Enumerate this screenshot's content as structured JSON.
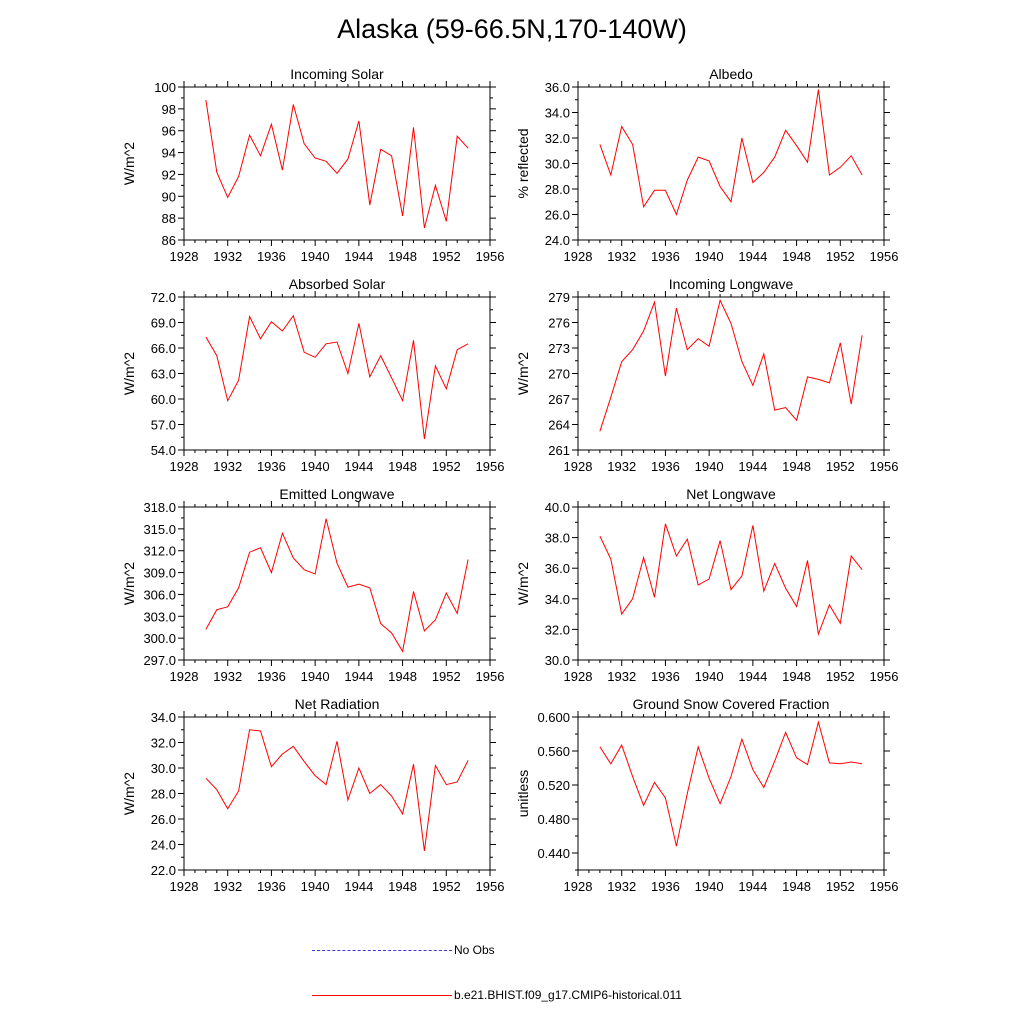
{
  "title": "Alaska (59-66.5N,170-140W)",
  "legend": [
    {
      "label": "No Obs",
      "style": "dashed",
      "color": "#3a3acc"
    },
    {
      "label": "b.e21.BHIST.f09_g17.CMIP6-historical.011",
      "style": "solid",
      "color": "#ff0000"
    }
  ],
  "series_color": "#ff0000",
  "chart_data": [
    {
      "type": "line",
      "title": "Incoming Solar",
      "ylabel": "W/m^2",
      "xlim": [
        1928,
        1956
      ],
      "xticks": [
        "1928",
        "1932",
        "1936",
        "1940",
        "1944",
        "1948",
        "1952",
        "1956"
      ],
      "ylim": [
        86,
        100
      ],
      "yticks": [
        "86",
        "88",
        "90",
        "92",
        "94",
        "96",
        "98",
        "100"
      ],
      "x": [
        1930,
        1931,
        1932,
        1933,
        1934,
        1935,
        1936,
        1937,
        1938,
        1939,
        1940,
        1941,
        1942,
        1943,
        1944,
        1945,
        1946,
        1947,
        1948,
        1949,
        1950,
        1951,
        1952,
        1953,
        1954
      ],
      "series": [
        {
          "values": [
            98.8,
            92.2,
            89.9,
            91.8,
            95.6,
            93.7,
            96.6,
            92.4,
            98.4,
            94.8,
            93.5,
            93.2,
            92.1,
            93.4,
            96.9,
            89.2,
            94.3,
            93.7,
            88.2,
            96.3,
            87.1,
            91.0,
            87.7,
            95.5,
            94.4
          ]
        }
      ]
    },
    {
      "type": "line",
      "title": "Albedo",
      "ylabel": "% reflected",
      "xlim": [
        1928,
        1956
      ],
      "xticks": [
        "1928",
        "1932",
        "1936",
        "1940",
        "1944",
        "1948",
        "1952",
        "1956"
      ],
      "ylim": [
        24,
        36
      ],
      "yticks": [
        "24.0",
        "26.0",
        "28.0",
        "30.0",
        "32.0",
        "34.0",
        "36.0"
      ],
      "x": [
        1930,
        1931,
        1932,
        1933,
        1934,
        1935,
        1936,
        1937,
        1938,
        1939,
        1940,
        1941,
        1942,
        1943,
        1944,
        1945,
        1946,
        1947,
        1948,
        1949,
        1950,
        1951,
        1952,
        1953,
        1954
      ],
      "series": [
        {
          "values": [
            31.5,
            29.1,
            32.9,
            31.5,
            26.6,
            27.9,
            27.9,
            26.0,
            28.7,
            30.5,
            30.2,
            28.2,
            27.0,
            32.0,
            28.5,
            29.3,
            30.5,
            32.6,
            31.4,
            30.1,
            35.8,
            29.1,
            29.7,
            30.6,
            29.1
          ]
        }
      ]
    },
    {
      "type": "line",
      "title": "Absorbed Solar",
      "ylabel": "W/m^2",
      "xlim": [
        1928,
        1956
      ],
      "xticks": [
        "1928",
        "1932",
        "1936",
        "1940",
        "1944",
        "1948",
        "1952",
        "1956"
      ],
      "ylim": [
        54,
        72
      ],
      "yticks": [
        "54.0",
        "57.0",
        "60.0",
        "63.0",
        "66.0",
        "69.0",
        "72.0"
      ],
      "x": [
        1930,
        1931,
        1932,
        1933,
        1934,
        1935,
        1936,
        1937,
        1938,
        1939,
        1940,
        1941,
        1942,
        1943,
        1944,
        1945,
        1946,
        1947,
        1948,
        1949,
        1950,
        1951,
        1952,
        1953,
        1954
      ],
      "series": [
        {
          "values": [
            67.3,
            65.1,
            59.8,
            62.2,
            69.7,
            67.1,
            69.1,
            68.0,
            69.8,
            65.5,
            64.9,
            66.5,
            66.7,
            63.0,
            68.9,
            62.6,
            65.1,
            62.5,
            59.8,
            66.9,
            55.3,
            63.9,
            61.2,
            65.8,
            66.5
          ]
        }
      ]
    },
    {
      "type": "line",
      "title": "Incoming Longwave",
      "ylabel": "W/m^2",
      "xlim": [
        1928,
        1956
      ],
      "xticks": [
        "1928",
        "1932",
        "1936",
        "1940",
        "1944",
        "1948",
        "1952",
        "1956"
      ],
      "ylim": [
        261,
        279
      ],
      "yticks": [
        "261",
        "264",
        "267",
        "270",
        "273",
        "276",
        "279"
      ],
      "x": [
        1930,
        1931,
        1932,
        1933,
        1934,
        1935,
        1936,
        1937,
        1938,
        1939,
        1940,
        1941,
        1942,
        1943,
        1944,
        1945,
        1946,
        1947,
        1948,
        1949,
        1950,
        1951,
        1952,
        1953,
        1954
      ],
      "series": [
        {
          "values": [
            263.2,
            267.2,
            271.4,
            272.8,
            275.0,
            278.4,
            269.7,
            277.7,
            272.8,
            274.1,
            273.2,
            278.6,
            275.9,
            271.4,
            268.6,
            272.3,
            265.7,
            266.0,
            264.5,
            269.6,
            269.3,
            268.9,
            273.6,
            266.4,
            274.5
          ]
        }
      ]
    },
    {
      "type": "line",
      "title": "Emitted Longwave",
      "ylabel": "W/m^2",
      "xlim": [
        1928,
        1956
      ],
      "xticks": [
        "1928",
        "1932",
        "1936",
        "1940",
        "1944",
        "1948",
        "1952",
        "1956"
      ],
      "ylim": [
        297,
        318
      ],
      "yticks": [
        "297.0",
        "300.0",
        "303.0",
        "306.0",
        "309.0",
        "312.0",
        "315.0",
        "318.0"
      ],
      "x": [
        1930,
        1931,
        1932,
        1933,
        1934,
        1935,
        1936,
        1937,
        1938,
        1939,
        1940,
        1941,
        1942,
        1943,
        1944,
        1945,
        1946,
        1947,
        1948,
        1949,
        1950,
        1951,
        1952,
        1953,
        1954
      ],
      "series": [
        {
          "values": [
            301.2,
            303.9,
            304.3,
            306.9,
            311.8,
            312.4,
            309.0,
            314.4,
            311.0,
            309.4,
            308.8,
            316.4,
            310.3,
            307.0,
            307.4,
            306.9,
            302.0,
            300.7,
            298.2,
            306.4,
            301.0,
            302.5,
            306.2,
            303.4,
            310.8
          ]
        }
      ]
    },
    {
      "type": "line",
      "title": "Net Longwave",
      "ylabel": "W/m^2",
      "xlim": [
        1928,
        1956
      ],
      "xticks": [
        "1928",
        "1932",
        "1936",
        "1940",
        "1944",
        "1948",
        "1952",
        "1956"
      ],
      "ylim": [
        30,
        40
      ],
      "yticks": [
        "30.0",
        "32.0",
        "34.0",
        "36.0",
        "38.0",
        "40.0"
      ],
      "x": [
        1930,
        1931,
        1932,
        1933,
        1934,
        1935,
        1936,
        1937,
        1938,
        1939,
        1940,
        1941,
        1942,
        1943,
        1944,
        1945,
        1946,
        1947,
        1948,
        1949,
        1950,
        1951,
        1952,
        1953,
        1954
      ],
      "series": [
        {
          "values": [
            38.1,
            36.6,
            33.0,
            34.0,
            36.7,
            34.1,
            38.9,
            36.8,
            37.9,
            34.9,
            35.3,
            37.8,
            34.6,
            35.5,
            38.8,
            34.5,
            36.3,
            34.7,
            33.5,
            36.5,
            31.7,
            33.6,
            32.4,
            36.8,
            35.9
          ]
        }
      ]
    },
    {
      "type": "line",
      "title": "Net Radiation",
      "ylabel": "W/m^2",
      "xlim": [
        1928,
        1956
      ],
      "xticks": [
        "1928",
        "1932",
        "1936",
        "1940",
        "1944",
        "1948",
        "1952",
        "1956"
      ],
      "ylim": [
        22,
        34
      ],
      "yticks": [
        "22.0",
        "24.0",
        "26.0",
        "28.0",
        "30.0",
        "32.0",
        "34.0"
      ],
      "x": [
        1930,
        1931,
        1932,
        1933,
        1934,
        1935,
        1936,
        1937,
        1938,
        1939,
        1940,
        1941,
        1942,
        1943,
        1944,
        1945,
        1946,
        1947,
        1948,
        1949,
        1950,
        1951,
        1952,
        1953,
        1954
      ],
      "series": [
        {
          "values": [
            29.2,
            28.3,
            26.8,
            28.2,
            33.0,
            32.9,
            30.1,
            31.1,
            31.7,
            30.5,
            29.4,
            28.7,
            32.1,
            27.5,
            30.0,
            28.0,
            28.7,
            27.8,
            26.4,
            30.3,
            23.5,
            30.2,
            28.7,
            28.9,
            30.6
          ]
        }
      ]
    },
    {
      "type": "line",
      "title": "Ground Snow Covered Fraction",
      "ylabel": "unitless",
      "xlim": [
        1928,
        1956
      ],
      "xticks": [
        "1928",
        "1932",
        "1936",
        "1940",
        "1944",
        "1948",
        "1952",
        "1956"
      ],
      "ylim": [
        0.42,
        0.6
      ],
      "yticks": [
        "0.440",
        "0.480",
        "0.520",
        "0.560",
        "0.600"
      ],
      "x": [
        1930,
        1931,
        1932,
        1933,
        1934,
        1935,
        1936,
        1937,
        1938,
        1939,
        1940,
        1941,
        1942,
        1943,
        1944,
        1945,
        1946,
        1947,
        1948,
        1949,
        1950,
        1951,
        1952,
        1953,
        1954
      ],
      "series": [
        {
          "values": [
            0.565,
            0.545,
            0.567,
            0.53,
            0.496,
            0.523,
            0.505,
            0.448,
            0.51,
            0.565,
            0.528,
            0.498,
            0.53,
            0.574,
            0.538,
            0.517,
            0.548,
            0.582,
            0.552,
            0.544,
            0.594,
            0.546,
            0.545,
            0.547,
            0.545
          ]
        }
      ]
    }
  ]
}
